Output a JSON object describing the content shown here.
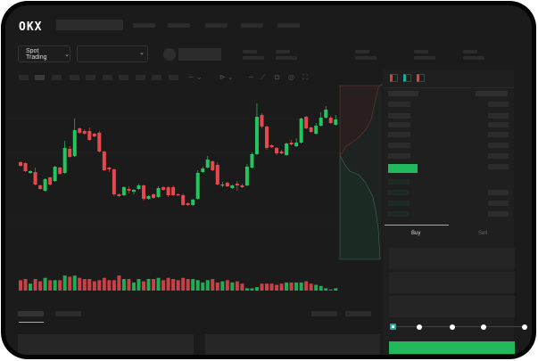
{
  "header": {
    "logo": "OKX"
  },
  "toolbar": {
    "market_selector": "Spot Trading",
    "pair_selector": ""
  },
  "trade_panel": {
    "tabs": [
      {
        "label": "Buy",
        "active": true
      },
      {
        "label": "Sell",
        "active": false
      }
    ],
    "slider_percent": 0
  },
  "colors": {
    "up": "#22c55e",
    "down": "#e5484d",
    "buy_button": "#22b85c",
    "background": "#1b1b1b"
  },
  "chart_data": {
    "type": "candlestick",
    "grid": true,
    "candles_ochl": [
      [
        119,
        115,
        120,
        114
      ],
      [
        118,
        109,
        119,
        108
      ],
      [
        107,
        109,
        110,
        106
      ],
      [
        108,
        94,
        113,
        93
      ],
      [
        93,
        89,
        94,
        88
      ],
      [
        87,
        100,
        101,
        86
      ],
      [
        102,
        94,
        103,
        93
      ],
      [
        98,
        114,
        115,
        97
      ],
      [
        113,
        106,
        114,
        105
      ],
      [
        107,
        135,
        143,
        106
      ],
      [
        134,
        125,
        137,
        124
      ],
      [
        126,
        155,
        168,
        125
      ],
      [
        157,
        152,
        158,
        151
      ],
      [
        154,
        151,
        156,
        150
      ],
      [
        154,
        144,
        158,
        143
      ],
      [
        151,
        148,
        152,
        147
      ],
      [
        152,
        131,
        154,
        130
      ],
      [
        131,
        110,
        132,
        109
      ],
      [
        113,
        111,
        114,
        108
      ],
      [
        111,
        83,
        112,
        81
      ],
      [
        83,
        81,
        84,
        80
      ],
      [
        82,
        91,
        92,
        81
      ],
      [
        89,
        87,
        92,
        84
      ],
      [
        86,
        88,
        89,
        83
      ],
      [
        89,
        93,
        95,
        88
      ],
      [
        93,
        78,
        94,
        76
      ],
      [
        78,
        81,
        82,
        77
      ],
      [
        83,
        79,
        84,
        78
      ],
      [
        80,
        90,
        92,
        79
      ],
      [
        91,
        88,
        92,
        87
      ],
      [
        91,
        82,
        92,
        80
      ],
      [
        91,
        82,
        93,
        81
      ],
      [
        83,
        82,
        84,
        81
      ],
      [
        82,
        71,
        84,
        70
      ],
      [
        73,
        71,
        74,
        70
      ],
      [
        71,
        77,
        78,
        70
      ],
      [
        78,
        107,
        110,
        77
      ],
      [
        108,
        112,
        114,
        107
      ],
      [
        113,
        122,
        126,
        112
      ],
      [
        120,
        110,
        121,
        109
      ],
      [
        116,
        94,
        119,
        93
      ],
      [
        93,
        94,
        97,
        91
      ],
      [
        96,
        92,
        97,
        91
      ],
      [
        90,
        93,
        94,
        89
      ],
      [
        95,
        93,
        98,
        87
      ],
      [
        93,
        91,
        95,
        90
      ],
      [
        93,
        114,
        117,
        92
      ],
      [
        113,
        128,
        130,
        112
      ],
      [
        128,
        170,
        185,
        127
      ],
      [
        172,
        159,
        174,
        157
      ],
      [
        159,
        135,
        160,
        133
      ],
      [
        138,
        136,
        139,
        135
      ],
      [
        135,
        129,
        136,
        127
      ],
      [
        131,
        129,
        133,
        128
      ],
      [
        127,
        140,
        141,
        126
      ],
      [
        141,
        139,
        144,
        138
      ],
      [
        137,
        141,
        146,
        136
      ],
      [
        141,
        168,
        169,
        140
      ],
      [
        170,
        157,
        171,
        156
      ],
      [
        158,
        153,
        159,
        152
      ],
      [
        151,
        160,
        163,
        150
      ],
      [
        160,
        169,
        175,
        159
      ],
      [
        169,
        178,
        182,
        168
      ],
      [
        169,
        163,
        171,
        162
      ],
      [
        161,
        167,
        172,
        160
      ]
    ],
    "volume": [
      9,
      10,
      6,
      10,
      8,
      11,
      9,
      9,
      9,
      13,
      12,
      13,
      11,
      10,
      10,
      8,
      9,
      11,
      9,
      9,
      13,
      10,
      10,
      7,
      10,
      8,
      10,
      10,
      11,
      9,
      11,
      10,
      9,
      11,
      10,
      10,
      9,
      7,
      9,
      10,
      7,
      8,
      9,
      7,
      8,
      6,
      2,
      2,
      3,
      6,
      6,
      6,
      5,
      6,
      7,
      7,
      7,
      7,
      8,
      6,
      5,
      4,
      2,
      1,
      2
    ]
  }
}
